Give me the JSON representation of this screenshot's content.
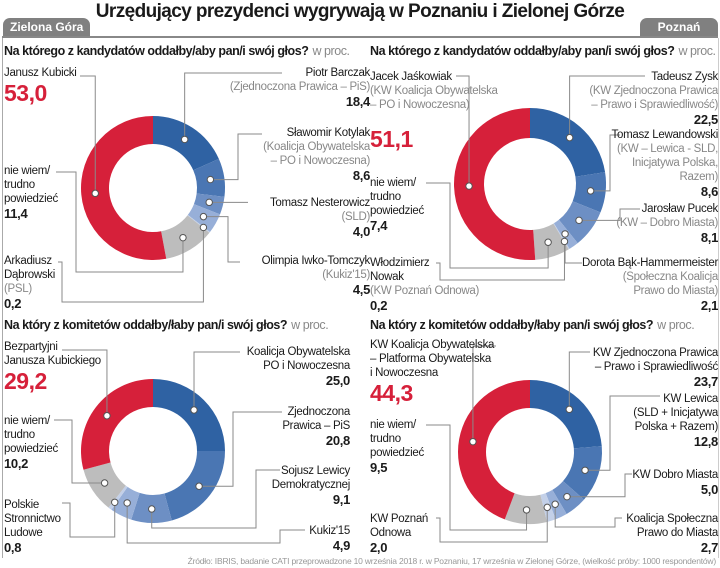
{
  "header": {
    "title": "Urzędujący prezydenci wygrywają w Poznaniu i Zielonej Górze",
    "region_left": "Zielona Góra",
    "region_right": "Poznań"
  },
  "source": "Źródło: IBRIS, badanie CATI przeprowadzone 10 września 2018 r. w Poznaniu, 17 września w Zielonej Górze, (wielkość próby: 1000 respondentów)",
  "chart_data": [
    {
      "type": "pie",
      "variant": "donut",
      "region": "Zielona Góra",
      "question": "Na którego z kandydatów oddałby/aby pan/i swój głos?",
      "unit": "w proc.",
      "segments": [
        {
          "lines": [
            "Piotr Barczak"
          ],
          "sub": [
            "(Zjednoczona Prawica – PiS)"
          ],
          "value": 18.4,
          "display": "18,4",
          "color": "#2f62a3"
        },
        {
          "lines": [
            "Sławomir Kotylak"
          ],
          "sub": [
            "(Koalicja Obywatelska",
            "– PO i Nowoczesna)"
          ],
          "value": 8.6,
          "display": "8,6",
          "color": "#4a76b3"
        },
        {
          "lines": [
            "Tomasz Nesterowicz"
          ],
          "sub": [
            "(SLD)"
          ],
          "value": 4.0,
          "display": "4,0",
          "color": "#6d8fc4"
        },
        {
          "lines": [
            "Olimpia Iwko-Tomczyk"
          ],
          "sub": [
            "(Kukiz'15)"
          ],
          "value": 4.5,
          "display": "4,5",
          "color": "#97afd8"
        },
        {
          "lines": [
            "Arkadiusz",
            "Dąbrowski"
          ],
          "sub": [
            "(PSL)"
          ],
          "value": 0.2,
          "display": "0,2",
          "color": "#c3d0e8"
        },
        {
          "lines": [
            "nie wiem/",
            "trudno",
            "powiedzieć"
          ],
          "sub": [],
          "value": 11.4,
          "display": "11,4",
          "color": "#bdbdbd"
        },
        {
          "lines": [
            "Janusz Kubicki"
          ],
          "sub": [],
          "value": 53.0,
          "display": "53,0",
          "color": "#d6203a",
          "highlight": true
        }
      ]
    },
    {
      "type": "pie",
      "variant": "donut",
      "region": "Poznań",
      "question": "Na którego z kandydatów oddałby/aby pan/i swój głos?",
      "unit": "w proc.",
      "segments": [
        {
          "lines": [
            "Tadeusz Zysk"
          ],
          "sub": [
            "(KW Zjednoczona Prawica",
            "– Prawo i Sprawiedliwość)"
          ],
          "value": 22.5,
          "display": "22,5",
          "color": "#2f62a3"
        },
        {
          "lines": [
            "Tomasz Lewandowski"
          ],
          "sub": [
            "(KW – Lewica - SLD,",
            "Inicjatywa Polska,",
            "Razem)"
          ],
          "value": 8.6,
          "display": "8,6",
          "color": "#4a76b3"
        },
        {
          "lines": [
            "Jarosław Pucek"
          ],
          "sub": [
            "(KW – Dobro Miasta)"
          ],
          "value": 8.1,
          "display": "8,1",
          "color": "#6d8fc4"
        },
        {
          "lines": [
            "Dorota Bąk-Hammermeister"
          ],
          "sub": [
            "(Społeczna Koalicja",
            "Prawo do Miasta)"
          ],
          "value": 2.1,
          "display": "2,1",
          "color": "#97afd8"
        },
        {
          "lines": [
            "Włodzimierz",
            "Nowak"
          ],
          "sub": [
            "(KW Poznań Odnowa)"
          ],
          "value": 0.2,
          "display": "0,2",
          "color": "#c3d0e8"
        },
        {
          "lines": [
            "nie wiem/",
            "trudno",
            "powiedzieć"
          ],
          "sub": [],
          "value": 7.4,
          "display": "7,4",
          "color": "#bdbdbd"
        },
        {
          "lines": [
            "Jacek Jaśkowiak"
          ],
          "sub": [
            "(KW Koalicja Obywatelska",
            "– PO i Nowoczesna)"
          ],
          "value": 51.1,
          "display": "51,1",
          "color": "#d6203a",
          "highlight": true
        }
      ]
    },
    {
      "type": "pie",
      "variant": "donut",
      "region": "Zielona Góra",
      "question": "Na który z komitetów oddałby/łaby pan/i swój głos?",
      "unit": "w proc.",
      "segments": [
        {
          "lines": [
            "Koalicja Obywatelska",
            "PO i Nowoczesna"
          ],
          "sub": [],
          "value": 25.0,
          "display": "25,0",
          "color": "#2f62a3"
        },
        {
          "lines": [
            "Zjednoczona",
            "Prawica – PiS"
          ],
          "sub": [],
          "value": 20.8,
          "display": "20,8",
          "color": "#4a76b3"
        },
        {
          "lines": [
            "Sojusz Lewicy",
            "Demokratycznej"
          ],
          "sub": [],
          "value": 9.1,
          "display": "9,1",
          "color": "#6d8fc4"
        },
        {
          "lines": [
            "Kukiz'15"
          ],
          "sub": [],
          "value": 4.9,
          "display": "4,9",
          "color": "#97afd8"
        },
        {
          "lines": [
            "Polskie",
            "Stronnictwo",
            "Ludowe"
          ],
          "sub": [],
          "value": 0.8,
          "display": "0,8",
          "color": "#c3d0e8"
        },
        {
          "lines": [
            "nie wiem/",
            "trudno",
            "powiedzieć"
          ],
          "sub": [],
          "value": 10.2,
          "display": "10,2",
          "color": "#bdbdbd"
        },
        {
          "lines": [
            "Bezpartyjni",
            "Janusza Kubickiego"
          ],
          "sub": [],
          "value": 29.2,
          "display": "29,2",
          "color": "#d6203a",
          "highlight": true
        }
      ]
    },
    {
      "type": "pie",
      "variant": "donut",
      "region": "Poznań",
      "question": "Na który z komitetów oddałby/łaby pan/i swój głos?",
      "unit": "w proc.",
      "segments": [
        {
          "lines": [
            "KW Zjednoczona Prawica",
            "– Prawo i Sprawiedliwość"
          ],
          "sub": [],
          "value": 23.7,
          "display": "23,7",
          "color": "#2f62a3"
        },
        {
          "lines": [
            "KW Lewica",
            "(SLD + Inicjatywa",
            "Polska + Razem)"
          ],
          "sub": [],
          "value": 12.8,
          "display": "12,8",
          "color": "#4a76b3"
        },
        {
          "lines": [
            "KW Dobro Miasta"
          ],
          "sub": [],
          "value": 5.0,
          "display": "5,0",
          "color": "#6d8fc4"
        },
        {
          "lines": [
            "Koalicja Społeczna",
            "Prawo do Miasta"
          ],
          "sub": [],
          "value": 2.7,
          "display": "2,7",
          "color": "#97afd8"
        },
        {
          "lines": [
            "KW Poznań",
            "Odnowa"
          ],
          "sub": [],
          "value": 2.0,
          "display": "2,0",
          "color": "#c3d0e8"
        },
        {
          "lines": [
            "nie wiem/",
            "trudno",
            "powiedzieć"
          ],
          "sub": [],
          "value": 9.5,
          "display": "9,5",
          "color": "#bdbdbd"
        },
        {
          "lines": [
            "KW Koalicja Obywatelska",
            "– Platforma Obywatelska",
            "i Nowoczesna"
          ],
          "sub": [],
          "value": 44.3,
          "display": "44,3",
          "color": "#d6203a",
          "highlight": true
        }
      ]
    }
  ]
}
